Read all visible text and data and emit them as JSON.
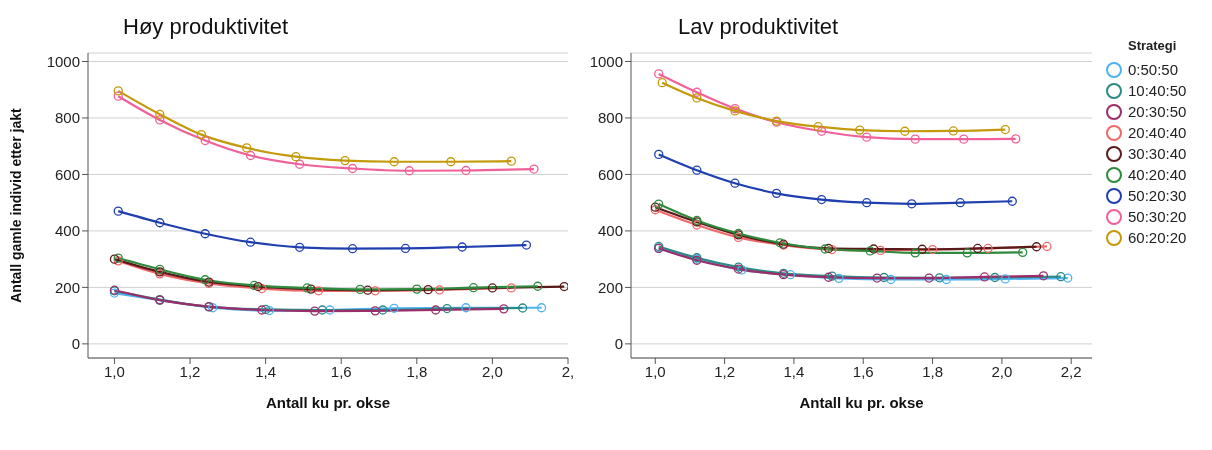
{
  "chart_data": [
    {
      "type": "line",
      "title": "Høy produktivitet",
      "xlabel": "Antall ku pr. okse",
      "ylabel": "Antall gamle individ etter jakt",
      "xlim": [
        0.93,
        2.2
      ],
      "xticks": [
        {
          "value": 1,
          "label": "1,0"
        },
        {
          "value": 1.2,
          "label": "1,2"
        },
        {
          "value": 1.4,
          "label": "1,4"
        },
        {
          "value": 1.6,
          "label": "1,6"
        },
        {
          "value": 1.8,
          "label": "1,8"
        },
        {
          "value": 2,
          "label": "2,0"
        },
        {
          "value": 2.2,
          "label": "2,"
        }
      ],
      "ylim": [
        -50,
        1030
      ],
      "yticks": [
        0,
        200,
        400,
        600,
        800,
        1000
      ],
      "grid": "y",
      "marker": "circle",
      "line_style": "solid",
      "series": [
        {
          "color": "#4fb3f0",
          "x": [
            1.0,
            1.12,
            1.26,
            1.41,
            1.57,
            1.74,
            1.93,
            2.13
          ],
          "values": [
            180,
            155,
            128,
            118,
            120,
            126,
            128,
            128
          ]
        },
        {
          "color": "#2a8a84",
          "x": [
            1.0,
            1.12,
            1.25,
            1.4,
            1.55,
            1.71,
            1.88,
            2.08
          ],
          "values": [
            188,
            157,
            131,
            122,
            120,
            120,
            125,
            127
          ]
        },
        {
          "color": "#9c2d6a",
          "x": [
            1.0,
            1.12,
            1.25,
            1.39,
            1.53,
            1.69,
            1.85,
            2.03
          ],
          "values": [
            190,
            155,
            132,
            120,
            116,
            117,
            120,
            124
          ]
        },
        {
          "color": "#f0686a",
          "x": [
            1.01,
            1.12,
            1.25,
            1.39,
            1.54,
            1.69,
            1.86,
            2.05
          ],
          "values": [
            294,
            248,
            214,
            196,
            188,
            188,
            191,
            198
          ]
        },
        {
          "color": "#5a1a1a",
          "x": [
            1.0,
            1.12,
            1.25,
            1.38,
            1.52,
            1.67,
            1.83,
            2.0,
            2.19
          ],
          "values": [
            300,
            255,
            219,
            203,
            194,
            190,
            192,
            198,
            203
          ]
        },
        {
          "color": "#2e8b3e",
          "x": [
            1.01,
            1.12,
            1.24,
            1.37,
            1.51,
            1.65,
            1.8,
            1.95,
            2.12
          ],
          "values": [
            304,
            264,
            227,
            207,
            198,
            193,
            194,
            199,
            204
          ]
        },
        {
          "color": "#1f3fae",
          "x": [
            1.01,
            1.12,
            1.24,
            1.36,
            1.49,
            1.63,
            1.77,
            1.92,
            2.09
          ],
          "values": [
            470,
            429,
            390,
            360,
            342,
            337,
            338,
            343,
            350
          ]
        },
        {
          "color": "#f0609a",
          "x": [
            1.01,
            1.12,
            1.24,
            1.36,
            1.49,
            1.63,
            1.78,
            1.93,
            2.11
          ],
          "values": [
            877,
            793,
            720,
            667,
            636,
            621,
            613,
            614,
            619
          ]
        },
        {
          "color": "#c49a0a",
          "x": [
            1.01,
            1.12,
            1.23,
            1.35,
            1.48,
            1.61,
            1.74,
            1.89,
            2.05
          ],
          "values": [
            896,
            813,
            741,
            694,
            663,
            649,
            645,
            645,
            647
          ]
        }
      ]
    },
    {
      "type": "line",
      "title": "Lav produktivitet",
      "xlabel": "Antall ku pr. okse",
      "legend_title": "Strategi",
      "legend": "right",
      "xlim": [
        0.93,
        2.26
      ],
      "xticks": [
        {
          "value": 1,
          "label": "1,0"
        },
        {
          "value": 1.2,
          "label": "1,2"
        },
        {
          "value": 1.4,
          "label": "1,4"
        },
        {
          "value": 1.6,
          "label": "1,6"
        },
        {
          "value": 1.8,
          "label": "1,8"
        },
        {
          "value": 2,
          "label": "2,0"
        },
        {
          "value": 2.2,
          "label": "2,2"
        }
      ],
      "ylim": [
        -50,
        1030
      ],
      "yticks": [
        0,
        200,
        400,
        600,
        800,
        1000
      ],
      "grid": "y",
      "marker": "circle",
      "line_style": "solid",
      "series": [
        {
          "name": "0:50:50",
          "color": "#4fb3f0",
          "x": [
            1.01,
            1.12,
            1.25,
            1.39,
            1.53,
            1.68,
            1.84,
            2.01,
            2.19
          ],
          "values": [
            340,
            300,
            262,
            245,
            232,
            228,
            228,
            230,
            233
          ]
        },
        {
          "name": "10:40:50",
          "color": "#2a8a84",
          "x": [
            1.01,
            1.12,
            1.24,
            1.37,
            1.51,
            1.66,
            1.82,
            1.98,
            2.17
          ],
          "values": [
            345,
            305,
            272,
            250,
            240,
            235,
            234,
            235,
            238
          ]
        },
        {
          "name": "20:30:50",
          "color": "#9c2d6a",
          "x": [
            1.01,
            1.12,
            1.24,
            1.37,
            1.5,
            1.64,
            1.79,
            1.95,
            2.12
          ],
          "values": [
            338,
            296,
            265,
            245,
            236,
            233,
            233,
            237,
            241
          ]
        },
        {
          "name": "20:40:40",
          "color": "#f0686a",
          "x": [
            1.0,
            1.12,
            1.24,
            1.37,
            1.51,
            1.65,
            1.8,
            1.96,
            2.13
          ],
          "values": [
            475,
            421,
            377,
            350,
            334,
            331,
            334,
            338,
            345
          ]
        },
        {
          "name": "30:30:40",
          "color": "#5a1a1a",
          "x": [
            1.0,
            1.12,
            1.24,
            1.37,
            1.5,
            1.63,
            1.77,
            1.93,
            2.1
          ],
          "values": [
            484,
            432,
            386,
            353,
            338,
            336,
            335,
            338,
            344
          ]
        },
        {
          "name": "40:20:40",
          "color": "#2e8b3e",
          "x": [
            1.01,
            1.12,
            1.24,
            1.36,
            1.49,
            1.62,
            1.75,
            1.9,
            2.06
          ],
          "values": [
            495,
            437,
            391,
            358,
            336,
            329,
            322,
            322,
            324
          ]
        },
        {
          "name": "50:20:30",
          "color": "#1f3fae",
          "x": [
            1.01,
            1.12,
            1.23,
            1.35,
            1.48,
            1.61,
            1.74,
            1.88,
            2.03
          ],
          "values": [
            671,
            615,
            569,
            533,
            511,
            500,
            496,
            500,
            505
          ]
        },
        {
          "name": "50:30:20",
          "color": "#f0609a",
          "x": [
            1.01,
            1.12,
            1.23,
            1.35,
            1.48,
            1.61,
            1.75,
            1.89,
            2.04
          ],
          "values": [
            956,
            891,
            833,
            785,
            753,
            732,
            725,
            725,
            726
          ]
        },
        {
          "name": "60:20:20",
          "color": "#c49a0a",
          "x": [
            1.02,
            1.12,
            1.23,
            1.35,
            1.47,
            1.59,
            1.72,
            1.86,
            2.01
          ],
          "values": [
            925,
            871,
            825,
            789,
            769,
            757,
            753,
            754,
            759
          ]
        }
      ]
    }
  ]
}
